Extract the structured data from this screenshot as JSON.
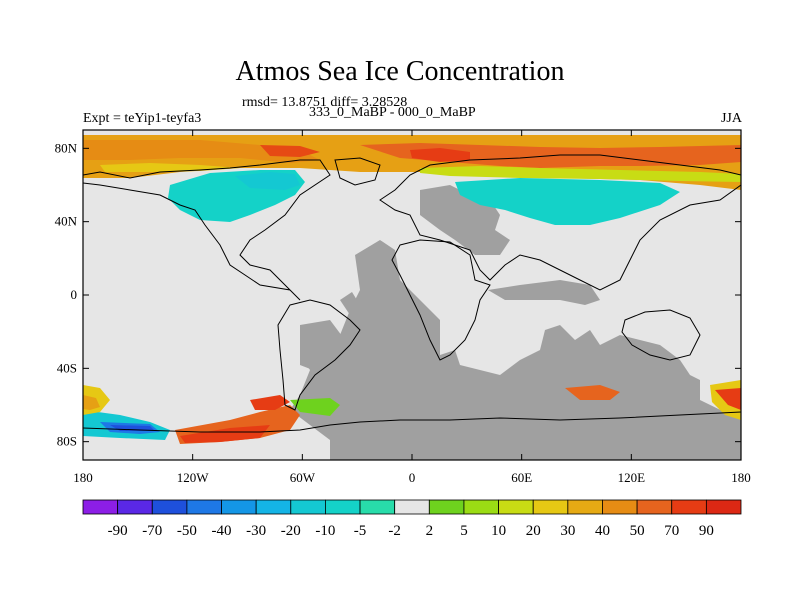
{
  "figure": {
    "title": "Atmos Sea Ice Concentration",
    "stats": "rmsd= 13.8751 diff= 3.28528",
    "expt": "Expt = teYip1-teyfa3",
    "difference": "333_0_MaBP - 000_0_MaBP",
    "season": "JJA"
  },
  "map": {
    "lat_labels": [
      "80N",
      "40N",
      "0",
      "40S",
      "80S"
    ],
    "lat_values": [
      80,
      40,
      0,
      -40,
      -80
    ],
    "lon_labels": [
      "180",
      "120W",
      "60W",
      "0",
      "60E",
      "120E",
      "180"
    ],
    "lon_values": [
      -180,
      -120,
      -60,
      0,
      60,
      120,
      180
    ],
    "lat_range": [
      -90,
      90
    ],
    "lon_range": [
      -180,
      180
    ],
    "missing_color": "#a0a0a0",
    "neutral_color": "#e6e6e6"
  },
  "colorbar": {
    "labels": [
      "-90",
      "-70",
      "-50",
      "-40",
      "-30",
      "-20",
      "-10",
      "-5",
      "-2",
      "2",
      "5",
      "10",
      "20",
      "30",
      "40",
      "50",
      "70",
      "90"
    ],
    "colors": [
      "#8c1ee6",
      "#5a28e6",
      "#1e50dc",
      "#1e78e6",
      "#1496e6",
      "#14b4e6",
      "#14c8d2",
      "#14d2c8",
      "#28dcaa",
      "#e6e6e6",
      "#6ed21e",
      "#9bdc14",
      "#c8dc14",
      "#e6c814",
      "#e6aa14",
      "#e68c14",
      "#e6641e",
      "#e63c14",
      "#dc2814"
    ]
  }
}
